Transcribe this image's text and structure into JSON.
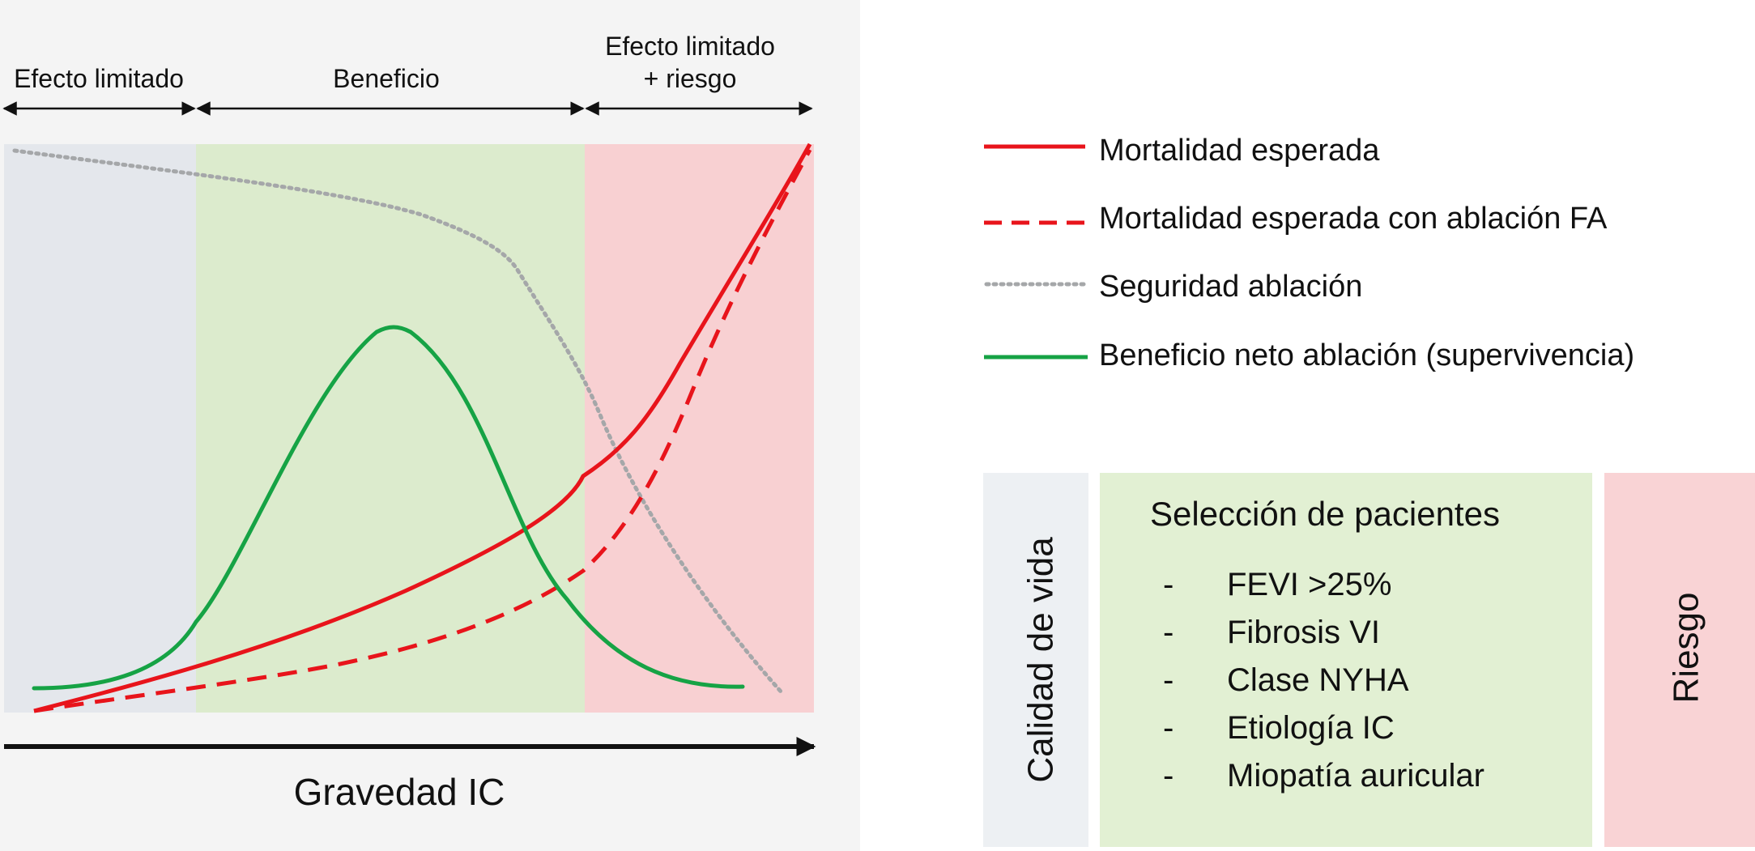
{
  "zones": [
    {
      "label": "Efecto limitado",
      "color": "#e4e7ec"
    },
    {
      "label": "Beneficio",
      "color": "#dcebcd"
    },
    {
      "label_lines": [
        "Efecto limitado",
        "+ riesgo"
      ],
      "color": "#f8d0d2"
    }
  ],
  "x_axis": {
    "label": "Gravedad IC"
  },
  "legend": [
    {
      "label": "Mortalidad esperada",
      "color": "#e8141b",
      "style": "solid"
    },
    {
      "label": "Mortalidad esperada con ablación FA",
      "color": "#e8141b",
      "style": "dashed"
    },
    {
      "label": "Seguridad ablación",
      "color": "#a5a7a9",
      "style": "dotted"
    },
    {
      "label": "Beneficio neto ablación (supervivencia)",
      "color": "#16a345",
      "style": "solid"
    }
  ],
  "boxes": {
    "left": {
      "label": "Calidad de vida",
      "color": "#edf0f3"
    },
    "middle": {
      "title": "Selección de pacientes",
      "color": "#e2f0d3",
      "bullet": "-",
      "items": [
        "FEVI >25%",
        "Fibrosis VI",
        "Clase NYHA",
        "Etiología IC",
        "Miopatía auricular"
      ]
    },
    "right": {
      "label": "Riesgo",
      "color": "#f9d3d5"
    }
  }
}
